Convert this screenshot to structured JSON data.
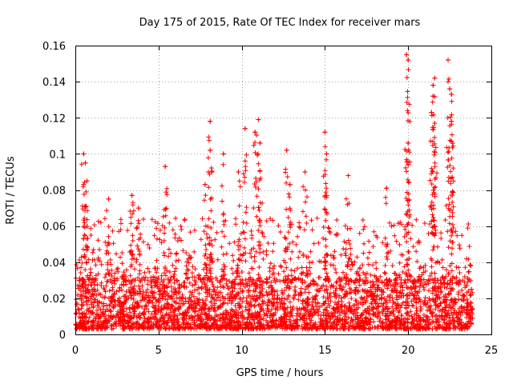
{
  "chart_data": {
    "type": "scatter",
    "title": "Day 175 of 2015, Rate Of TEC Index for receiver mars",
    "xlabel": "GPS time / hours",
    "ylabel": "ROTI / TECUs",
    "xlim": [
      0,
      25
    ],
    "ylim": [
      0,
      0.16
    ],
    "xticks": [
      0,
      5,
      10,
      15,
      20,
      25
    ],
    "yticks": [
      0,
      0.02,
      0.04,
      0.06,
      0.08,
      0.1,
      0.12,
      0.14,
      0.16
    ],
    "xtick_labels": [
      "0",
      "5",
      "10",
      "15",
      "20",
      "25"
    ],
    "ytick_labels": [
      "0",
      "0.02",
      "0.04",
      "0.06",
      "0.08",
      "0.1",
      "0.12",
      "0.14",
      "0.16"
    ],
    "grid": true,
    "marker": "+",
    "color": "#ff0000",
    "x_range_of_data": [
      0,
      23.8
    ],
    "baseline_band": [
      0.003,
      0.03
    ],
    "notable_points": [
      {
        "x": 0.5,
        "y": 0.1
      },
      {
        "x": 0.6,
        "y": 0.095
      },
      {
        "x": 0.7,
        "y": 0.085
      },
      {
        "x": 2.0,
        "y": 0.075
      },
      {
        "x": 3.4,
        "y": 0.077
      },
      {
        "x": 3.8,
        "y": 0.07
      },
      {
        "x": 5.4,
        "y": 0.093
      },
      {
        "x": 7.8,
        "y": 0.083
      },
      {
        "x": 8.1,
        "y": 0.118
      },
      {
        "x": 8.1,
        "y": 0.102
      },
      {
        "x": 8.9,
        "y": 0.1
      },
      {
        "x": 9.8,
        "y": 0.09
      },
      {
        "x": 10.2,
        "y": 0.114
      },
      {
        "x": 10.8,
        "y": 0.112
      },
      {
        "x": 11.0,
        "y": 0.119
      },
      {
        "x": 11.1,
        "y": 0.106
      },
      {
        "x": 12.7,
        "y": 0.102
      },
      {
        "x": 12.9,
        "y": 0.083
      },
      {
        "x": 13.8,
        "y": 0.09
      },
      {
        "x": 15.0,
        "y": 0.112
      },
      {
        "x": 15.1,
        "y": 0.1
      },
      {
        "x": 16.4,
        "y": 0.088
      },
      {
        "x": 18.7,
        "y": 0.081
      },
      {
        "x": 19.9,
        "y": 0.155
      },
      {
        "x": 20.0,
        "y": 0.152
      },
      {
        "x": 20.0,
        "y": 0.106
      },
      {
        "x": 20.0,
        "y": 0.094
      },
      {
        "x": 21.4,
        "y": 0.123
      },
      {
        "x": 21.5,
        "y": 0.138
      },
      {
        "x": 21.6,
        "y": 0.142
      },
      {
        "x": 21.5,
        "y": 0.132
      },
      {
        "x": 21.6,
        "y": 0.117
      },
      {
        "x": 22.4,
        "y": 0.152
      },
      {
        "x": 22.5,
        "y": 0.136
      },
      {
        "x": 22.6,
        "y": 0.133
      },
      {
        "x": 22.6,
        "y": 0.118
      },
      {
        "x": 22.6,
        "y": 0.107
      },
      {
        "x": 23.8,
        "y": 0.025
      }
    ]
  }
}
